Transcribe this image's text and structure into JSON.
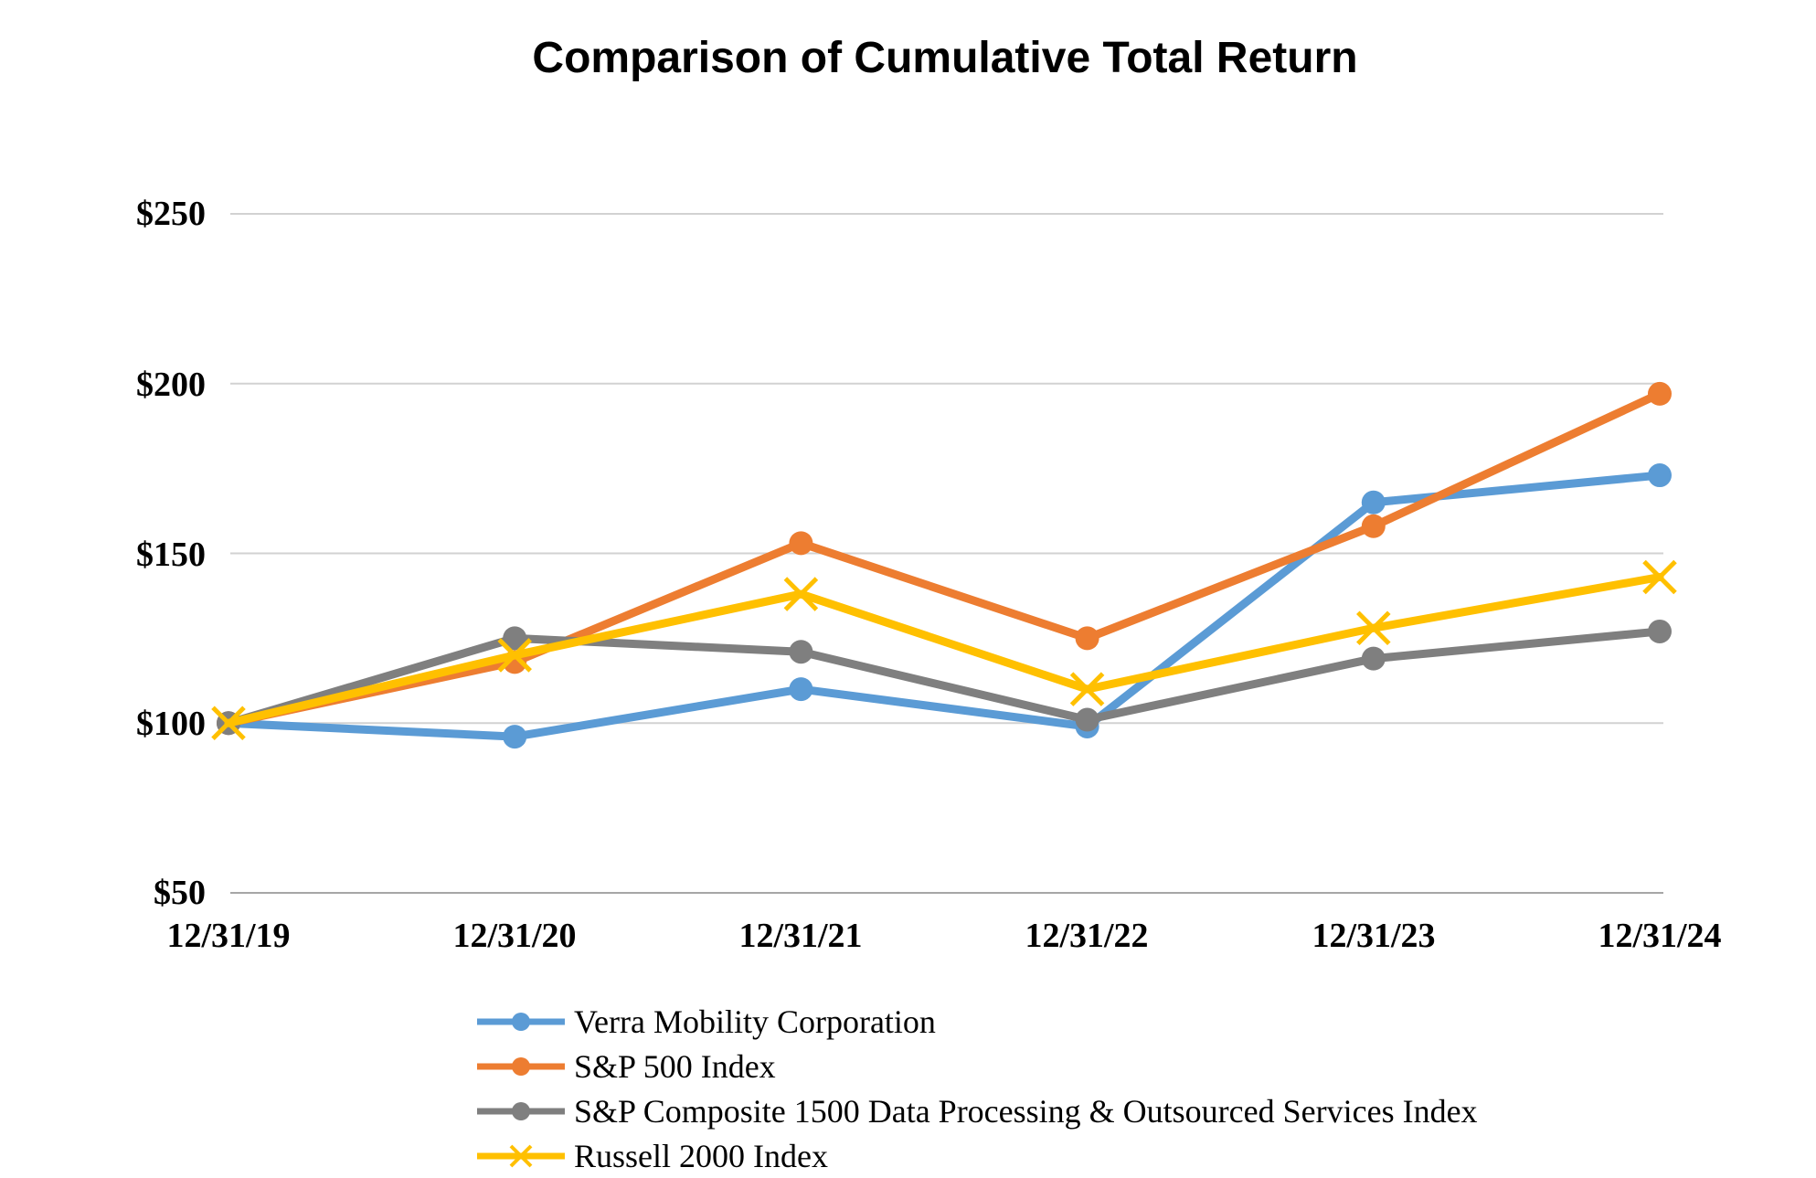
{
  "chart_data": {
    "type": "line",
    "title": "Comparison of Cumulative Total Return",
    "xlabel": "",
    "ylabel": "",
    "x_categories": [
      "12/31/19",
      "12/31/20",
      "12/31/21",
      "12/31/22",
      "12/31/23",
      "12/31/24"
    ],
    "y_ticks": [
      "$250",
      "$200",
      "$150",
      "$100",
      "$50"
    ],
    "y_tick_values": [
      250,
      200,
      150,
      100,
      50
    ],
    "ylim": [
      50,
      250
    ],
    "grid": "horizontal",
    "legend_position": "bottom-left",
    "series": [
      {
        "name": "Verra Mobility Corporation",
        "color": "#5B9BD5",
        "marker": "circle",
        "values": [
          100,
          96,
          110,
          99,
          165,
          173
        ]
      },
      {
        "name": "S&P 500 Index",
        "color": "#ED7D31",
        "marker": "circle",
        "values": [
          100,
          118,
          153,
          125,
          158,
          197
        ]
      },
      {
        "name": "S&P Composite 1500 Data Processing & Outsourced Services Index",
        "color": "#7F7F7F",
        "marker": "circle",
        "values": [
          100,
          125,
          121,
          101,
          119,
          127
        ]
      },
      {
        "name": "Russell 2000 Index",
        "color": "#FFC000",
        "marker": "x",
        "values": [
          100,
          120,
          138,
          110,
          128,
          143
        ]
      }
    ]
  }
}
